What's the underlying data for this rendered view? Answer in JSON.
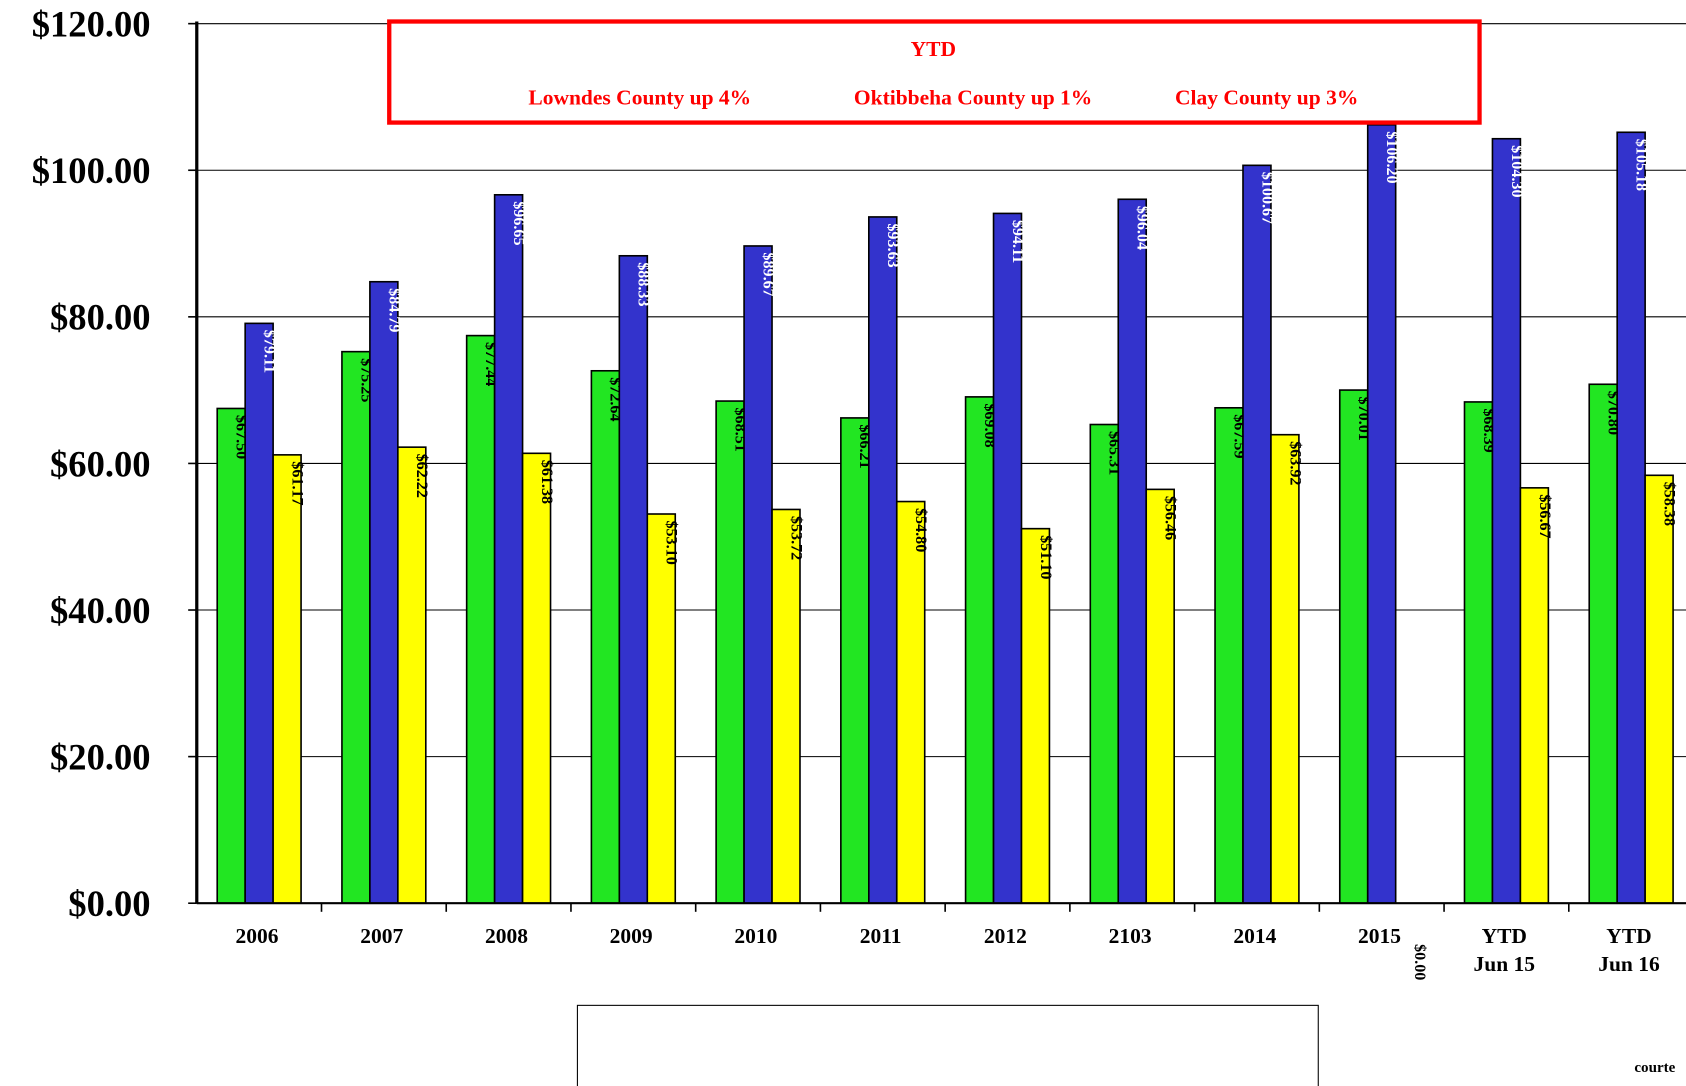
{
  "chart_data": {
    "type": "bar",
    "categories": [
      "2006",
      "2007",
      "2008",
      "2009",
      "2010",
      "2011",
      "2012",
      "2103",
      "2014",
      "2015",
      "YTD Jun 15",
      "YTD Jun 16"
    ],
    "series": [
      {
        "name": "Lowndes",
        "color": "#22e622",
        "values": [
          67.5,
          75.25,
          77.44,
          72.64,
          68.51,
          66.21,
          69.08,
          65.31,
          67.59,
          70.01,
          68.39,
          70.8
        ],
        "value_labels": [
          "$67.50",
          "$75.25",
          "$77.44",
          "$72.64",
          "$68.51",
          "$66.21",
          "$69.08",
          "$65.31",
          "$67.59",
          "$70.01",
          "$68.39",
          "$70.80"
        ]
      },
      {
        "name": "Oktibbeha",
        "color": "#3333cc",
        "values": [
          79.11,
          84.79,
          96.65,
          88.33,
          89.67,
          93.63,
          94.11,
          96.04,
          100.67,
          106.2,
          104.3,
          105.18
        ],
        "value_labels": [
          "$79.11",
          "$84.79",
          "$96.65",
          "$88.33",
          "$89.67",
          "$93.63",
          "$94.11",
          "$96.04",
          "$100.67",
          "$106.20",
          "$104.30",
          "$105.18"
        ]
      },
      {
        "name": "Clay",
        "color": "#ffff00",
        "values": [
          61.17,
          62.22,
          61.38,
          53.1,
          53.72,
          54.8,
          51.1,
          56.46,
          63.92,
          0,
          56.67,
          58.38
        ],
        "value_labels": [
          "$61.17",
          "$62.22",
          "$61.38",
          "$53.10",
          "$53.72",
          "$54.80",
          "$51.10",
          "$56.46",
          "$63.92",
          "$0.00",
          "$56.67",
          "$58.38"
        ]
      }
    ],
    "ylim": [
      0,
      120
    ],
    "yticks": [
      {
        "value": 0,
        "label": "$0.00"
      },
      {
        "value": 20,
        "label": "$20.00"
      },
      {
        "value": 40,
        "label": "$40.00"
      },
      {
        "value": 60,
        "label": "$60.00"
      },
      {
        "value": 80,
        "label": "$80.00"
      },
      {
        "value": 100,
        "label": "$100.00"
      },
      {
        "value": 120,
        "label": "$120.00"
      }
    ],
    "grid": true,
    "annotation": {
      "title": "YTD",
      "lines": [
        "Lowndes County up 4%",
        "Oktibbeha County up 1%",
        "Clay County up 3%"
      ],
      "color": "#ff0000"
    },
    "footnote": "courte"
  }
}
